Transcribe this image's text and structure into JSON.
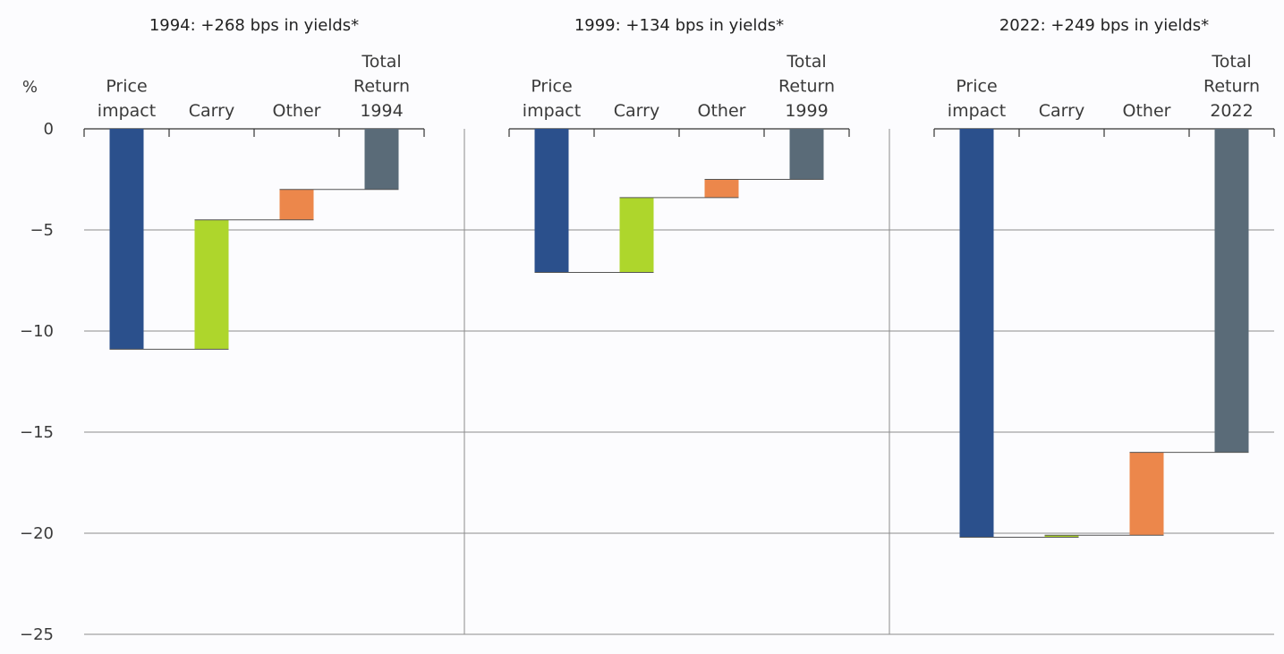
{
  "chart_data": {
    "type": "bar",
    "subtype": "waterfall",
    "ylabel": "%",
    "ylim": [
      -25,
      0
    ],
    "yticks": [
      0,
      -5,
      -10,
      -15,
      -20,
      -25
    ],
    "ytick_labels": [
      "0",
      "−5",
      "−10",
      "−15",
      "−20",
      "−25"
    ],
    "grid": true,
    "colors": {
      "price_impact": "#2b508c",
      "carry": "#aed62c",
      "other": "#ec874b",
      "total": "#5a6b78",
      "grid": "#8c8c8c",
      "connector": "#555555"
    },
    "panels": [
      {
        "title": "1994: +268 bps in yields*",
        "categories": [
          [
            "Price",
            "impact"
          ],
          [
            "Carry"
          ],
          [
            "Other"
          ],
          [
            "Total",
            "Return",
            "1994"
          ]
        ],
        "steps": [
          -10.9,
          6.4,
          1.5
        ],
        "total": -3.0
      },
      {
        "title": "1999: +134 bps in yields*",
        "categories": [
          [
            "Price",
            "impact"
          ],
          [
            "Carry"
          ],
          [
            "Other"
          ],
          [
            "Total",
            "Return",
            "1999"
          ]
        ],
        "steps": [
          -7.1,
          3.7,
          0.9
        ],
        "total": -2.5
      },
      {
        "title": "2022: +249 bps in yields*",
        "categories": [
          [
            "Price",
            "impact"
          ],
          [
            "Carry"
          ],
          [
            "Other"
          ],
          [
            "Total",
            "Return",
            "2022"
          ]
        ],
        "steps": [
          -20.2,
          0.1,
          4.1
        ],
        "total": -16.0
      }
    ]
  }
}
